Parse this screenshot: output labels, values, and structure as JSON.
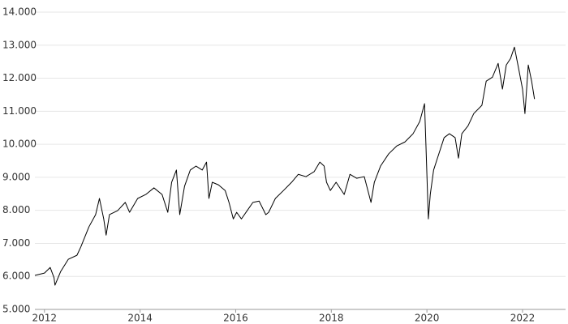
{
  "chart_data": {
    "type": "line",
    "color": "#000000",
    "grid": true,
    "xlim": [
      2011.8,
      2022.9
    ],
    "xticks": [
      2012,
      2014,
      2016,
      2018,
      2020,
      2022
    ],
    "ylim": [
      5000,
      14000
    ],
    "yticks": [
      {
        "value": 5000,
        "label": "5.000"
      },
      {
        "value": 6000,
        "label": "6.000"
      },
      {
        "value": 7000,
        "label": "7.000"
      },
      {
        "value": 8000,
        "label": "8.000"
      },
      {
        "value": 9000,
        "label": "9.000"
      },
      {
        "value": 10000,
        "label": "10.000"
      },
      {
        "value": 11000,
        "label": "11.000"
      },
      {
        "value": 12000,
        "label": "12.000"
      },
      {
        "value": 13000,
        "label": "13.000"
      },
      {
        "value": 14000,
        "label": "14.000"
      }
    ],
    "x": [
      2011.8,
      2012.0,
      2012.12,
      2012.2,
      2012.22,
      2012.34,
      2012.5,
      2012.68,
      2012.76,
      2012.93,
      2013.07,
      2013.15,
      2013.24,
      2013.29,
      2013.36,
      2013.53,
      2013.69,
      2013.78,
      2013.95,
      2014.12,
      2014.29,
      2014.46,
      2014.58,
      2014.66,
      2014.76,
      2014.83,
      2014.93,
      2015.05,
      2015.17,
      2015.3,
      2015.39,
      2015.44,
      2015.51,
      2015.64,
      2015.78,
      2015.86,
      2015.95,
      2016.02,
      2016.12,
      2016.24,
      2016.36,
      2016.49,
      2016.63,
      2016.69,
      2016.83,
      2017.0,
      2017.17,
      2017.31,
      2017.47,
      2017.64,
      2017.76,
      2017.85,
      2017.9,
      2017.98,
      2018.1,
      2018.27,
      2018.39,
      2018.53,
      2018.69,
      2018.83,
      2018.9,
      2019.03,
      2019.2,
      2019.37,
      2019.54,
      2019.71,
      2019.85,
      2019.95,
      2019.98,
      2020.03,
      2020.07,
      2020.14,
      2020.22,
      2020.36,
      2020.47,
      2020.59,
      2020.66,
      2020.73,
      2020.86,
      2020.98,
      2021.15,
      2021.24,
      2021.37,
      2021.49,
      2021.58,
      2021.66,
      2021.75,
      2021.83,
      2021.92,
      2022.0,
      2022.05,
      2022.12,
      2022.19,
      2022.25
    ],
    "values": [
      6030,
      6100,
      6270,
      5960,
      5735,
      6150,
      6520,
      6640,
      6890,
      7500,
      7870,
      8360,
      7740,
      7250,
      7870,
      7990,
      8240,
      7940,
      8360,
      8480,
      8680,
      8480,
      7940,
      8850,
      9220,
      7870,
      8730,
      9220,
      9340,
      9220,
      9460,
      8360,
      8850,
      8770,
      8600,
      8240,
      7740,
      7940,
      7740,
      7990,
      8240,
      8280,
      7870,
      7940,
      8360,
      8600,
      8850,
      9090,
      9020,
      9170,
      9460,
      9340,
      8850,
      8600,
      8850,
      8480,
      9090,
      8970,
      9020,
      8240,
      8850,
      9340,
      9710,
      9950,
      10070,
      10320,
      10690,
      11230,
      9950,
      7740,
      8480,
      9220,
      9580,
      10200,
      10320,
      10200,
      9580,
      10320,
      10560,
      10930,
      11180,
      11910,
      12030,
      12450,
      11670,
      12400,
      12600,
      12940,
      12280,
      11670,
      10930,
      12400,
      11910,
      11370
    ]
  }
}
